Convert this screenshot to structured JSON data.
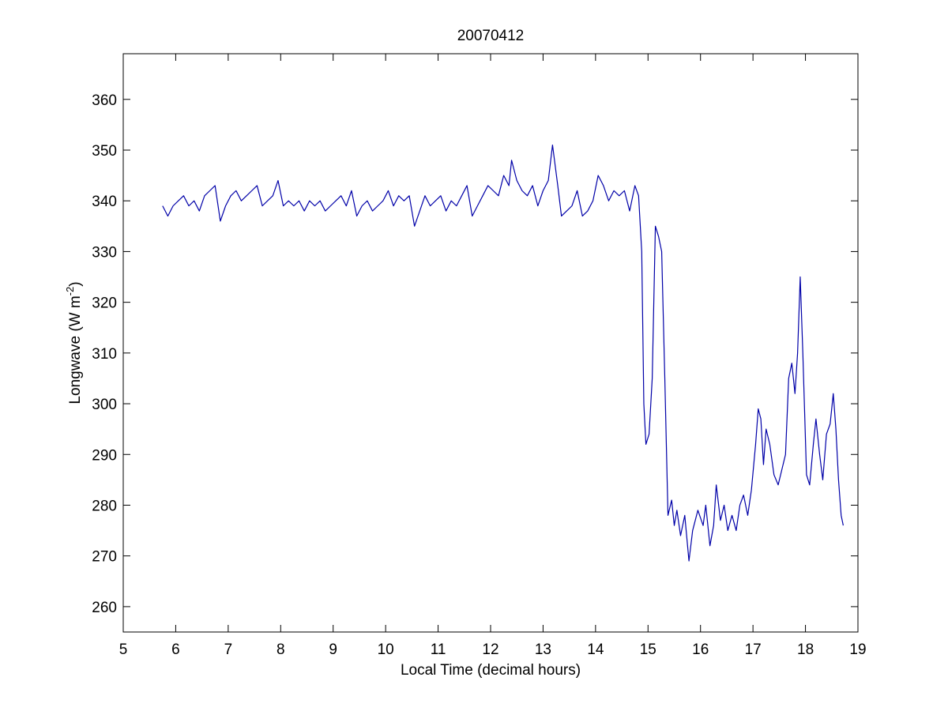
{
  "chart_data": {
    "type": "line",
    "title": "20070412",
    "xlabel": "Local Time (decimal hours)",
    "ylabel_parts": [
      "Longwave (W m",
      "-2",
      ")"
    ],
    "xlim": [
      5,
      19
    ],
    "ylim": [
      255,
      369
    ],
    "xticks": [
      5,
      6,
      7,
      8,
      9,
      10,
      11,
      12,
      13,
      14,
      15,
      16,
      17,
      18,
      19
    ],
    "yticks": [
      260,
      270,
      280,
      290,
      300,
      310,
      320,
      330,
      340,
      350,
      360
    ],
    "grid": false,
    "series": [
      {
        "color": "#0000a8",
        "x": [
          5.75,
          5.85,
          5.95,
          6.05,
          6.15,
          6.25,
          6.35,
          6.45,
          6.55,
          6.65,
          6.75,
          6.85,
          6.95,
          7.05,
          7.15,
          7.25,
          7.35,
          7.45,
          7.55,
          7.65,
          7.75,
          7.85,
          7.95,
          8.05,
          8.15,
          8.25,
          8.35,
          8.45,
          8.55,
          8.65,
          8.75,
          8.85,
          8.95,
          9.05,
          9.15,
          9.25,
          9.35,
          9.45,
          9.55,
          9.65,
          9.75,
          9.85,
          9.95,
          10.05,
          10.15,
          10.25,
          10.35,
          10.45,
          10.55,
          10.65,
          10.75,
          10.85,
          10.95,
          11.05,
          11.15,
          11.25,
          11.35,
          11.45,
          11.55,
          11.65,
          11.75,
          11.85,
          11.95,
          12.05,
          12.15,
          12.25,
          12.35,
          12.4,
          12.5,
          12.6,
          12.7,
          12.8,
          12.9,
          13.0,
          13.1,
          13.18,
          13.28,
          13.35,
          13.45,
          13.55,
          13.65,
          13.75,
          13.85,
          13.95,
          14.05,
          14.15,
          14.25,
          14.35,
          14.45,
          14.55,
          14.65,
          14.75,
          14.82,
          14.88,
          14.92,
          14.96,
          15.02,
          15.08,
          15.14,
          15.2,
          15.26,
          15.32,
          15.38,
          15.45,
          15.5,
          15.55,
          15.62,
          15.7,
          15.78,
          15.85,
          15.95,
          16.05,
          16.1,
          16.18,
          16.25,
          16.3,
          16.38,
          16.45,
          16.52,
          16.6,
          16.68,
          16.75,
          16.82,
          16.9,
          16.97,
          17.05,
          17.1,
          17.15,
          17.2,
          17.25,
          17.32,
          17.4,
          17.48,
          17.55,
          17.62,
          17.68,
          17.74,
          17.8,
          17.85,
          17.9,
          17.95,
          18.02,
          18.08,
          18.15,
          18.2,
          18.27,
          18.33,
          18.4,
          18.47,
          18.53,
          18.58,
          18.63,
          18.68,
          18.72
        ],
        "values": [
          339,
          337,
          339,
          340,
          341,
          339,
          340,
          338,
          341,
          342,
          343,
          336,
          339,
          341,
          342,
          340,
          341,
          342,
          343,
          339,
          340,
          341,
          344,
          339,
          340,
          339,
          340,
          338,
          340,
          339,
          340,
          338,
          339,
          340,
          341,
          339,
          342,
          337,
          339,
          340,
          338,
          339,
          340,
          342,
          339,
          341,
          340,
          341,
          335,
          338,
          341,
          339,
          340,
          341,
          338,
          340,
          339,
          341,
          343,
          337,
          339,
          341,
          343,
          342,
          341,
          345,
          343,
          348,
          344,
          342,
          341,
          343,
          339,
          342,
          344,
          351,
          343,
          337,
          338,
          339,
          342,
          337,
          338,
          340,
          345,
          343,
          340,
          342,
          341,
          342,
          338,
          343,
          341,
          330,
          300,
          292,
          294,
          305,
          335,
          333,
          330,
          305,
          278,
          281,
          276,
          279,
          274,
          278,
          269,
          275,
          279,
          276,
          280,
          272,
          276,
          284,
          277,
          280,
          275,
          278,
          275,
          280,
          282,
          278,
          283,
          292,
          299,
          297,
          288,
          295,
          292,
          286,
          284,
          287,
          290,
          305,
          308,
          302,
          310,
          325,
          310,
          286,
          284,
          292,
          297,
          290,
          285,
          294,
          296,
          302,
          295,
          285,
          278,
          276
        ]
      }
    ]
  }
}
